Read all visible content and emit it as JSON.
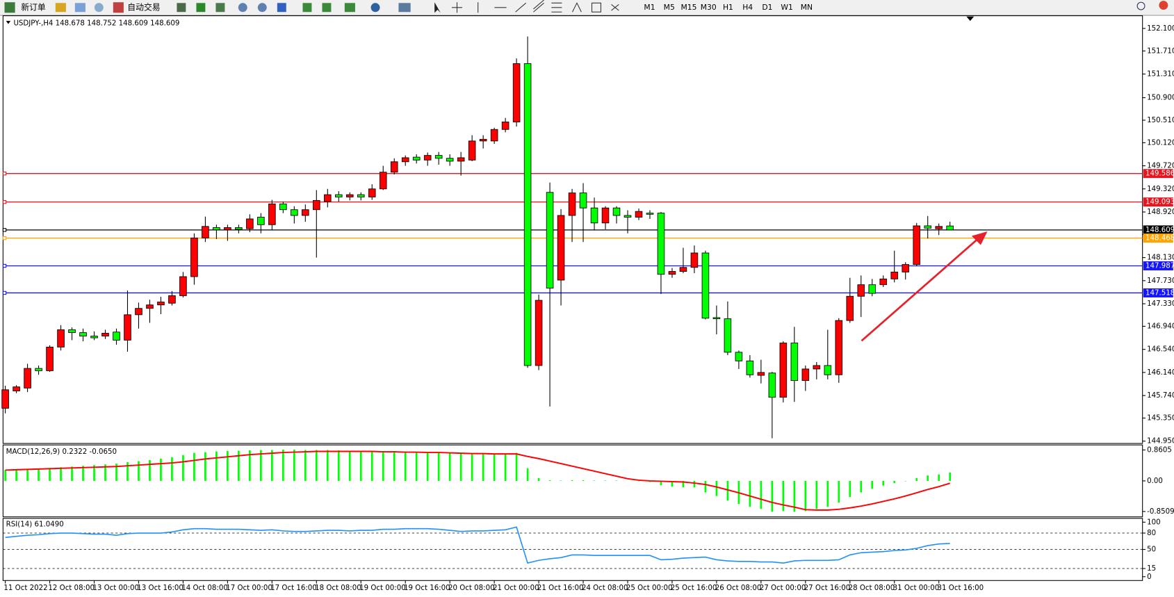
{
  "toolbar": {
    "buttons": [
      "新订单",
      "自动交易"
    ],
    "periods": [
      "M1",
      "M5",
      "M15",
      "M30",
      "H1",
      "H4",
      "D1",
      "W1",
      "MN"
    ]
  },
  "chart_data": [
    {
      "type": "candlestick",
      "title": "USDJPY-,H4  148.678 148.752 148.609 148.609",
      "categories": [
        "11 Oct 2022",
        null,
        null,
        null,
        "12 Oct 08:00",
        null,
        null,
        null,
        "13 Oct 00:00",
        null,
        null,
        null,
        "13 Oct 16:00",
        null,
        null,
        null,
        "14 Oct 08:00",
        null,
        null,
        null,
        "17 Oct 00:00",
        null,
        null,
        null,
        "17 Oct 16:00",
        null,
        null,
        null,
        "18 Oct 08:00",
        null,
        null,
        null,
        "19 Oct 00:00",
        null,
        null,
        null,
        "19 Oct 16:00",
        null,
        null,
        null,
        "20 Oct 08:00",
        null,
        null,
        null,
        "21 Oct 00:00",
        null,
        null,
        null,
        "21 Oct 16:00",
        null,
        null,
        null,
        "24 Oct 08:00",
        null,
        null,
        null,
        "25 Oct 00:00",
        null,
        null,
        null,
        "25 Oct 16:00",
        null,
        null,
        null,
        "26 Oct 08:00",
        null,
        null,
        null,
        "27 Oct 00:00",
        null,
        null,
        null,
        "27 Oct 16:00",
        null,
        null,
        null,
        "28 Oct 08:00",
        null,
        null,
        null,
        "31 Oct 00:00",
        null,
        null,
        null,
        "31 Oct 16:00",
        null
      ],
      "open": [
        145.52,
        145.82,
        145.87,
        146.21,
        146.17,
        146.58,
        146.88,
        146.83,
        146.77,
        146.77,
        146.84,
        146.7,
        147.14,
        147.25,
        147.31,
        147.34,
        147.47,
        147.8,
        148.47,
        148.65,
        148.61,
        148.65,
        148.63,
        148.83,
        148.7,
        149.06,
        148.96,
        148.86,
        148.96,
        149.1,
        149.22,
        149.18,
        149.22,
        149.18,
        149.32,
        149.61,
        149.79,
        149.87,
        149.82,
        149.9,
        149.85,
        149.8,
        149.82,
        150.15,
        150.15,
        150.35,
        150.48,
        151.49,
        146.26,
        149.26,
        147.74,
        148.86,
        149.25,
        148.99,
        148.73,
        148.99,
        148.86,
        148.83,
        148.9,
        148.9,
        147.84,
        147.89,
        147.96,
        148.21,
        147.09,
        147.07,
        146.49,
        146.34,
        146.09,
        146.13,
        145.71,
        146.65,
        146.0,
        146.2,
        146.26,
        146.1,
        147.04,
        147.46,
        147.66,
        147.66,
        147.76,
        147.88,
        148.01,
        148.68,
        148.63,
        148.678
      ],
      "high": [
        145.91,
        145.92,
        146.29,
        146.26,
        146.61,
        146.96,
        146.92,
        146.9,
        146.85,
        146.88,
        146.9,
        147.56,
        147.35,
        147.4,
        147.45,
        147.55,
        147.88,
        148.55,
        148.84,
        148.7,
        148.7,
        148.7,
        148.88,
        148.9,
        149.13,
        149.1,
        149.02,
        149.05,
        149.3,
        149.32,
        149.28,
        149.26,
        149.26,
        149.4,
        149.72,
        149.85,
        149.9,
        149.92,
        149.95,
        149.96,
        149.92,
        149.96,
        150.25,
        150.25,
        150.38,
        150.55,
        151.58,
        151.96,
        147.49,
        149.43,
        148.97,
        149.32,
        149.42,
        149.17,
        149.02,
        149.02,
        148.95,
        148.98,
        148.95,
        148.92,
        147.95,
        148.3,
        148.34,
        148.25,
        147.3,
        147.37,
        146.52,
        146.44,
        146.36,
        146.15,
        146.68,
        146.93,
        146.26,
        146.32,
        146.88,
        147.08,
        147.78,
        147.82,
        147.76,
        147.82,
        148.25,
        148.05,
        148.73,
        148.85,
        148.72,
        148.752
      ],
      "low": [
        145.43,
        145.78,
        145.8,
        146.1,
        146.15,
        146.52,
        146.7,
        146.68,
        146.7,
        146.72,
        146.62,
        146.5,
        146.9,
        147.0,
        147.15,
        147.3,
        147.44,
        147.66,
        148.4,
        148.45,
        148.42,
        148.55,
        148.57,
        148.55,
        148.6,
        148.9,
        148.72,
        148.75,
        148.13,
        149.0,
        149.1,
        149.12,
        149.12,
        149.13,
        149.3,
        149.57,
        149.72,
        149.76,
        149.72,
        149.74,
        149.72,
        149.55,
        149.8,
        150.02,
        150.1,
        150.3,
        150.4,
        146.22,
        146.18,
        145.55,
        147.3,
        148.4,
        148.4,
        148.6,
        148.62,
        148.72,
        148.55,
        148.78,
        148.8,
        147.5,
        147.78,
        147.86,
        147.86,
        147.06,
        146.8,
        146.44,
        146.2,
        146.05,
        145.95,
        145.0,
        145.62,
        145.63,
        145.82,
        146.02,
        146.02,
        145.96,
        147.0,
        147.1,
        147.46,
        147.62,
        147.7,
        147.75,
        147.98,
        148.46,
        148.52,
        148.609
      ],
      "close": [
        145.84,
        145.89,
        146.21,
        146.17,
        146.58,
        146.88,
        146.83,
        146.77,
        146.74,
        146.82,
        146.7,
        147.14,
        147.25,
        147.31,
        147.36,
        147.47,
        147.8,
        148.47,
        148.67,
        148.61,
        148.65,
        148.62,
        148.8,
        148.7,
        149.06,
        148.96,
        148.86,
        148.96,
        149.12,
        149.22,
        149.18,
        149.22,
        149.18,
        149.32,
        149.61,
        149.79,
        149.86,
        149.82,
        149.9,
        149.85,
        149.8,
        149.86,
        150.15,
        150.18,
        150.35,
        150.48,
        151.49,
        146.26,
        147.39,
        147.6,
        148.86,
        149.25,
        148.99,
        148.73,
        148.99,
        148.86,
        148.83,
        148.93,
        148.88,
        147.84,
        147.89,
        147.96,
        148.21,
        147.08,
        147.07,
        146.49,
        146.34,
        146.1,
        146.14,
        145.71,
        146.65,
        146.0,
        146.2,
        146.26,
        146.1,
        147.04,
        147.46,
        147.66,
        147.51,
        147.76,
        147.88,
        148.01,
        148.68,
        148.64,
        148.67,
        148.609
      ],
      "up_color": "#ff0000",
      "down_color": "#00ff00",
      "ylim": [
        144.91,
        152.32
      ],
      "yticks": [
        {
          "value": 152.1,
          "label": "152.100"
        },
        {
          "value": 151.71,
          "label": "151.710"
        },
        {
          "value": 151.31,
          "label": "151.310"
        },
        {
          "value": 150.9,
          "label": "150.900"
        },
        {
          "value": 150.51,
          "label": "150.510"
        },
        {
          "value": 150.12,
          "label": "150.120"
        },
        {
          "value": 149.72,
          "label": "149.720"
        },
        {
          "value": 149.32,
          "label": "149.320"
        },
        {
          "value": 148.92,
          "label": "148.920"
        },
        {
          "value": 148.53,
          "label": "148.530"
        },
        {
          "value": 148.13,
          "label": "148.130"
        },
        {
          "value": 147.73,
          "label": "147.730"
        },
        {
          "value": 147.33,
          "label": "147.330"
        },
        {
          "value": 146.94,
          "label": "146.940"
        },
        {
          "value": 146.54,
          "label": "146.540"
        },
        {
          "value": 146.14,
          "label": "146.140"
        },
        {
          "value": 145.74,
          "label": "145.740"
        },
        {
          "value": 145.35,
          "label": "145.350"
        },
        {
          "value": 144.95,
          "label": "144.950"
        }
      ],
      "hlines": [
        {
          "value": 149.586,
          "color": "#e8141e"
        },
        {
          "value": 149.093,
          "color": "#e8141e"
        },
        {
          "value": 148.609,
          "color": "#000000"
        },
        {
          "value": 148.468,
          "color": "#ffa500"
        },
        {
          "value": 147.987,
          "color": "#1414ff"
        },
        {
          "value": 147.518,
          "color": "#1414ff"
        }
      ]
    },
    {
      "type": "macd",
      "title": "MACD(12,26,9) 0.2322 -0.0650",
      "values": [
        0.3,
        0.31,
        0.32,
        0.33,
        0.36,
        0.38,
        0.4,
        0.42,
        0.44,
        0.46,
        0.48,
        0.52,
        0.55,
        0.58,
        0.62,
        0.66,
        0.72,
        0.78,
        0.8,
        0.82,
        0.83,
        0.84,
        0.85,
        0.86,
        0.86,
        0.87,
        0.87,
        0.86,
        0.86,
        0.86,
        0.85,
        0.84,
        0.83,
        0.83,
        0.83,
        0.83,
        0.82,
        0.81,
        0.8,
        0.79,
        0.78,
        0.77,
        0.77,
        0.77,
        0.76,
        0.76,
        0.78,
        0.35,
        0.08,
        0.02,
        0.01,
        0.02,
        0.02,
        0.01,
        0.01,
        0.01,
        0.0,
        -0.01,
        -0.03,
        -0.12,
        -0.16,
        -0.18,
        -0.18,
        -0.32,
        -0.42,
        -0.55,
        -0.64,
        -0.72,
        -0.78,
        -0.86,
        -0.84,
        -0.86,
        -0.84,
        -0.78,
        -0.72,
        -0.6,
        -0.45,
        -0.32,
        -0.22,
        -0.13,
        -0.06,
        -0.01,
        0.08,
        0.15,
        0.18,
        0.2322
      ],
      "signal": [
        0.3,
        0.31,
        0.32,
        0.33,
        0.34,
        0.35,
        0.36,
        0.37,
        0.38,
        0.39,
        0.4,
        0.42,
        0.44,
        0.46,
        0.48,
        0.5,
        0.53,
        0.57,
        0.61,
        0.64,
        0.67,
        0.7,
        0.73,
        0.75,
        0.77,
        0.79,
        0.8,
        0.81,
        0.82,
        0.82,
        0.82,
        0.82,
        0.82,
        0.82,
        0.81,
        0.81,
        0.8,
        0.8,
        0.79,
        0.79,
        0.78,
        0.77,
        0.76,
        0.76,
        0.75,
        0.75,
        0.75,
        0.68,
        0.62,
        0.55,
        0.48,
        0.41,
        0.34,
        0.27,
        0.2,
        0.13,
        0.06,
        0.02,
        0.0,
        -0.01,
        -0.02,
        -0.03,
        -0.06,
        -0.1,
        -0.17,
        -0.25,
        -0.33,
        -0.42,
        -0.51,
        -0.6,
        -0.67,
        -0.73,
        -0.8,
        -0.81,
        -0.81,
        -0.79,
        -0.75,
        -0.7,
        -0.64,
        -0.57,
        -0.5,
        -0.42,
        -0.33,
        -0.24,
        -0.16,
        -0.065
      ],
      "color": "#00ff00",
      "signal_color": "#ff0000",
      "ylim": [
        -1.0,
        1.0
      ],
      "yticks": [
        0.8605,
        {
          "value": 0,
          "label": "0.00"
        },
        -0.8509
      ]
    },
    {
      "type": "line",
      "title": "RSI(14) 61.0490",
      "values": [
        72,
        74,
        76,
        77,
        79,
        80,
        80,
        79,
        78,
        78,
        76,
        79,
        80,
        80,
        80,
        82,
        86,
        88,
        88,
        87,
        87,
        87,
        86,
        85,
        86,
        84,
        83,
        83,
        84,
        85,
        85,
        84,
        85,
        85,
        87,
        87,
        88,
        88,
        88,
        87,
        85,
        83,
        84,
        84,
        85,
        86,
        91,
        25,
        30,
        33,
        35,
        40,
        40,
        39,
        39,
        39,
        39,
        39,
        39,
        31,
        32,
        34,
        35,
        36,
        31,
        29,
        28,
        28,
        27,
        27,
        25,
        29,
        30,
        30,
        30,
        31,
        40,
        44,
        45,
        46,
        48,
        49,
        52,
        57,
        60,
        61.049
      ],
      "color": "#1e90ff",
      "ylim": [
        -7,
        107
      ],
      "yticks": [
        100,
        80,
        50,
        15,
        0
      ],
      "levels": [
        80,
        50,
        15
      ]
    }
  ]
}
